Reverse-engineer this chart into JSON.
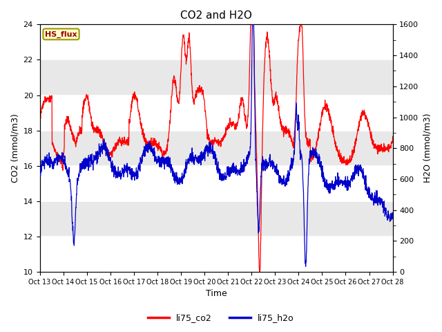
{
  "title": "CO2 and H2O",
  "xlabel": "Time",
  "ylabel_left": "CO2 (mmol/m3)",
  "ylabel_right": "H2O (mmol/m3)",
  "ylim_left": [
    10,
    24
  ],
  "ylim_right": [
    0,
    1600
  ],
  "yticks_left": [
    10,
    12,
    14,
    16,
    18,
    20,
    22,
    24
  ],
  "yticks_right": [
    0,
    200,
    400,
    600,
    800,
    1000,
    1200,
    1400,
    1600
  ],
  "color_co2": "#FF0000",
  "color_h2o": "#0000CC",
  "legend_entries": [
    "li75_co2",
    "li75_h2o"
  ],
  "label_box_text": "HS_flux",
  "label_box_facecolor": "#FFFFCC",
  "label_box_edgecolor": "#999900",
  "label_box_textcolor": "#990000",
  "background_color": "#FFFFFF",
  "band_colors": [
    "#FFFFFF",
    "#E8E8E8"
  ],
  "n_points": 2000,
  "lw_co2": 0.9,
  "lw_h2o": 0.9
}
